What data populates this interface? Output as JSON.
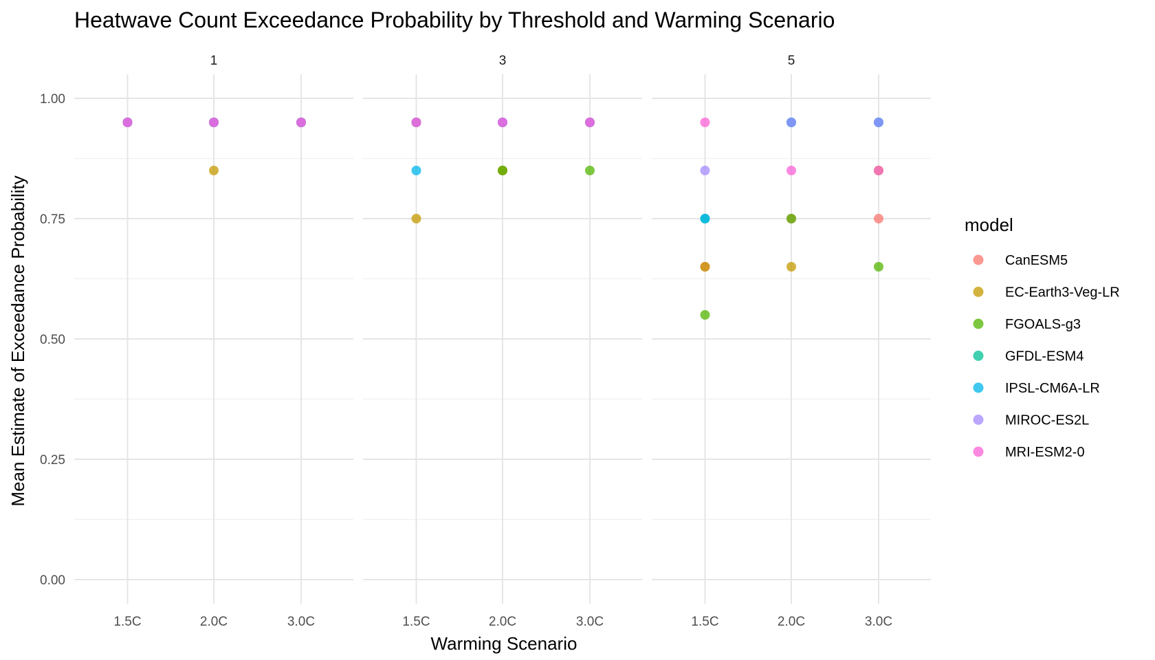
{
  "chart_data": {
    "type": "scatter",
    "title": "Heatwave Count Exceedance Probability by Threshold and Warming Scenario",
    "xlabel": "Warming Scenario",
    "ylabel": "Mean Estimate of Exceedance Probability",
    "categories": [
      "1.5C",
      "2.0C",
      "3.0C"
    ],
    "ylim": [
      -0.05,
      1.05
    ],
    "yticks": [
      "0.00",
      "0.25",
      "0.50",
      "0.75",
      "1.00"
    ],
    "grid": true,
    "legend_position": "right",
    "legend_title": "model",
    "facet_by": "threshold",
    "facets": [
      "1",
      "3",
      "5"
    ],
    "series": [
      {
        "name": "CanESM5",
        "color": "#F8766D",
        "points": [
          {
            "facet": "1",
            "x": "1.5C",
            "y": 0.95
          },
          {
            "facet": "1",
            "x": "2.0C",
            "y": 0.95
          },
          {
            "facet": "1",
            "x": "3.0C",
            "y": 0.95
          },
          {
            "facet": "3",
            "x": "1.5C",
            "y": 0.95
          },
          {
            "facet": "3",
            "x": "2.0C",
            "y": 0.85
          },
          {
            "facet": "3",
            "x": "3.0C",
            "y": 0.95
          },
          {
            "facet": "5",
            "x": "1.5C",
            "y": 0.65
          },
          {
            "facet": "5",
            "x": "2.0C",
            "y": 0.75
          },
          {
            "facet": "5",
            "x": "3.0C",
            "y": 0.75
          }
        ]
      },
      {
        "name": "EC-Earth3-Veg-LR",
        "color": "#C49A00",
        "points": [
          {
            "facet": "1",
            "x": "1.5C",
            "y": 0.95
          },
          {
            "facet": "1",
            "x": "2.0C",
            "y": 0.85
          },
          {
            "facet": "1",
            "x": "3.0C",
            "y": 0.95
          },
          {
            "facet": "3",
            "x": "1.5C",
            "y": 0.75
          },
          {
            "facet": "3",
            "x": "2.0C",
            "y": 0.85
          },
          {
            "facet": "3",
            "x": "3.0C",
            "y": 0.95
          },
          {
            "facet": "5",
            "x": "1.5C",
            "y": 0.65
          },
          {
            "facet": "5",
            "x": "2.0C",
            "y": 0.65
          },
          {
            "facet": "5",
            "x": "3.0C",
            "y": 0.85
          }
        ]
      },
      {
        "name": "FGOALS-g3",
        "color": "#53B400",
        "points": [
          {
            "facet": "1",
            "x": "1.5C",
            "y": 0.95
          },
          {
            "facet": "1",
            "x": "2.0C",
            "y": 0.95
          },
          {
            "facet": "1",
            "x": "3.0C",
            "y": 0.95
          },
          {
            "facet": "3",
            "x": "1.5C",
            "y": 0.95
          },
          {
            "facet": "3",
            "x": "2.0C",
            "y": 0.85
          },
          {
            "facet": "3",
            "x": "3.0C",
            "y": 0.85
          },
          {
            "facet": "5",
            "x": "1.5C",
            "y": 0.55
          },
          {
            "facet": "5",
            "x": "2.0C",
            "y": 0.75
          },
          {
            "facet": "5",
            "x": "3.0C",
            "y": 0.65
          }
        ]
      },
      {
        "name": "GFDL-ESM4",
        "color": "#00C094",
        "points": [
          {
            "facet": "1",
            "x": "1.5C",
            "y": 0.95
          },
          {
            "facet": "1",
            "x": "2.0C",
            "y": 0.95
          },
          {
            "facet": "1",
            "x": "3.0C",
            "y": 0.95
          },
          {
            "facet": "3",
            "x": "1.5C",
            "y": 0.95
          },
          {
            "facet": "3",
            "x": "2.0C",
            "y": 0.95
          },
          {
            "facet": "3",
            "x": "3.0C",
            "y": 0.95
          },
          {
            "facet": "5",
            "x": "1.5C",
            "y": 0.75
          },
          {
            "facet": "5",
            "x": "2.0C",
            "y": 0.95
          },
          {
            "facet": "5",
            "x": "3.0C",
            "y": 0.95
          }
        ]
      },
      {
        "name": "IPSL-CM6A-LR",
        "color": "#00B6EB",
        "points": [
          {
            "facet": "1",
            "x": "1.5C",
            "y": 0.95
          },
          {
            "facet": "1",
            "x": "2.0C",
            "y": 0.95
          },
          {
            "facet": "1",
            "x": "3.0C",
            "y": 0.95
          },
          {
            "facet": "3",
            "x": "1.5C",
            "y": 0.85
          },
          {
            "facet": "3",
            "x": "2.0C",
            "y": 0.95
          },
          {
            "facet": "3",
            "x": "3.0C",
            "y": 0.95
          },
          {
            "facet": "5",
            "x": "1.5C",
            "y": 0.75
          },
          {
            "facet": "5",
            "x": "2.0C",
            "y": 0.95
          },
          {
            "facet": "5",
            "x": "3.0C",
            "y": 0.95
          }
        ]
      },
      {
        "name": "MIROC-ES2L",
        "color": "#A58AFF",
        "points": [
          {
            "facet": "1",
            "x": "1.5C",
            "y": 0.95
          },
          {
            "facet": "1",
            "x": "2.0C",
            "y": 0.95
          },
          {
            "facet": "1",
            "x": "3.0C",
            "y": 0.95
          },
          {
            "facet": "3",
            "x": "1.5C",
            "y": 0.95
          },
          {
            "facet": "3",
            "x": "2.0C",
            "y": 0.95
          },
          {
            "facet": "3",
            "x": "3.0C",
            "y": 0.95
          },
          {
            "facet": "5",
            "x": "1.5C",
            "y": 0.85
          },
          {
            "facet": "5",
            "x": "2.0C",
            "y": 0.95
          },
          {
            "facet": "5",
            "x": "3.0C",
            "y": 0.95
          }
        ]
      },
      {
        "name": "MRI-ESM2-0",
        "color": "#FB61D7",
        "points": [
          {
            "facet": "1",
            "x": "1.5C",
            "y": 0.95
          },
          {
            "facet": "1",
            "x": "2.0C",
            "y": 0.95
          },
          {
            "facet": "1",
            "x": "3.0C",
            "y": 0.95
          },
          {
            "facet": "3",
            "x": "1.5C",
            "y": 0.95
          },
          {
            "facet": "3",
            "x": "2.0C",
            "y": 0.95
          },
          {
            "facet": "3",
            "x": "3.0C",
            "y": 0.95
          },
          {
            "facet": "5",
            "x": "1.5C",
            "y": 0.95
          },
          {
            "facet": "5",
            "x": "2.0C",
            "y": 0.85
          },
          {
            "facet": "5",
            "x": "3.0C",
            "y": 0.85
          }
        ]
      }
    ]
  }
}
